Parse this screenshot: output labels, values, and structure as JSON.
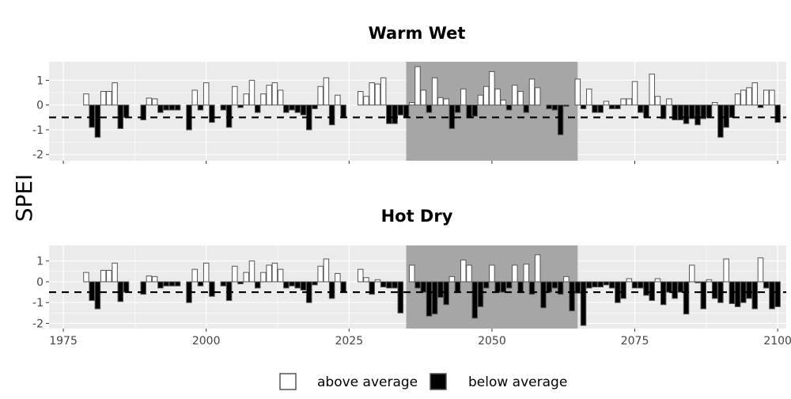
{
  "chart_data": [
    {
      "type": "bar",
      "title": "Warm Wet",
      "ylabel": "SPEI",
      "xlabel": "",
      "xlim": [
        1972.5,
        2101.5
      ],
      "ylim": [
        -2.25,
        1.75
      ],
      "yticks": [
        -2,
        -1,
        0,
        1
      ],
      "ytick_labels": [
        "-2",
        "-1",
        "0",
        "1"
      ],
      "xticks": [
        1975,
        2000,
        2025,
        2050,
        2075,
        2100
      ],
      "xtick_labels": [],
      "threshold": -0.5,
      "highlight": [
        2035,
        2065
      ],
      "grid": true,
      "series": [
        {
          "start_year": 1979,
          "values": [
            0.45,
            -0.9,
            -1.3,
            0.55,
            0.55,
            0.9,
            -0.95,
            -0.5,
            0,
            0,
            -0.6,
            0.28,
            0.25,
            -0.3,
            -0.2,
            -0.2,
            -0.2,
            0,
            -1,
            0.6,
            -0.2,
            0.9,
            -0.7,
            0,
            -0.2,
            -0.9,
            0.75,
            -0.1,
            0.45,
            1,
            -0.3,
            0.45,
            0.8,
            0.9,
            0.6,
            -0.3,
            -0.2,
            -0.3,
            -0.4,
            -1,
            -0.15,
            0.75,
            1.1,
            -0.8,
            0.4,
            -0.5,
            0,
            0,
            0.55,
            0.35,
            0.9,
            0.85,
            1.1,
            -0.75,
            -0.75,
            -0.4,
            -0.5,
            0.1,
            1.55,
            0.6,
            -0.3,
            1.1,
            0.3,
            0.25,
            -0.95,
            -0.3,
            0.65,
            -0.5,
            -0.45,
            0.4,
            0.75,
            1.35,
            0.65,
            0.2,
            -0.2,
            0.8,
            0.55,
            -0.3,
            1.05,
            0.7,
            0,
            -0.15,
            -0.2,
            -1.2,
            -0.05,
            0,
            1.05,
            -0.15,
            0.65,
            -0.3,
            -0.3,
            0.15,
            -0.15,
            -0.15,
            0.25,
            0.25,
            0.95,
            -0.3,
            -0.5,
            1.25,
            0.35,
            -0.55,
            0.25,
            -0.6,
            -0.6,
            -0.75,
            -0.55,
            -0.8,
            -0.55,
            -0.5,
            0.1,
            -1.3,
            -0.9,
            -0.5,
            0.45,
            0.6,
            0.7,
            0.9,
            -0.1,
            0.6,
            0.6,
            -0.7
          ]
        }
      ]
    },
    {
      "type": "bar",
      "title": "Hot Dry",
      "ylabel": "SPEI",
      "xlabel": "",
      "xlim": [
        1972.5,
        2101.5
      ],
      "ylim": [
        -2.25,
        1.75
      ],
      "yticks": [
        -2,
        -1,
        0,
        1
      ],
      "ytick_labels": [
        "-2",
        "-1",
        "0",
        "1"
      ],
      "xticks": [
        1975,
        2000,
        2025,
        2050,
        2075,
        2100
      ],
      "xtick_labels": [
        "1975",
        "2000",
        "2025",
        "2050",
        "2075",
        "2100"
      ],
      "threshold": -0.5,
      "highlight": [
        2035,
        2065
      ],
      "grid": true,
      "series": [
        {
          "start_year": 1979,
          "values": [
            0.45,
            -0.9,
            -1.3,
            0.55,
            0.55,
            0.9,
            -0.95,
            -0.5,
            0,
            0,
            -0.6,
            0.28,
            0.25,
            -0.3,
            -0.2,
            -0.2,
            -0.2,
            0,
            -1,
            0.6,
            -0.2,
            0.9,
            -0.7,
            0,
            -0.2,
            -0.9,
            0.75,
            -0.1,
            0.45,
            1,
            -0.3,
            0.45,
            0.8,
            0.9,
            0.6,
            -0.3,
            -0.2,
            -0.3,
            -0.4,
            -1,
            -0.15,
            0.75,
            1.1,
            -0.8,
            0.4,
            -0.5,
            0,
            0,
            0.6,
            0.2,
            -0.6,
            0.1,
            -0.25,
            -0.3,
            -0.3,
            -1.5,
            0,
            0.8,
            -0.3,
            -0.5,
            -1.65,
            -1.55,
            -0.75,
            -1.1,
            0.25,
            -0.5,
            1.05,
            0.8,
            -1.75,
            -1.2,
            -0.3,
            0.8,
            -0.5,
            -0.5,
            -0.3,
            0.8,
            -0.5,
            0.85,
            -0.6,
            1.3,
            -1.25,
            -0.5,
            -0.3,
            -0.6,
            0.25,
            -1.4,
            -0.55,
            -2.1,
            -0.3,
            -0.25,
            -0.25,
            -0.15,
            -0.3,
            -1,
            -0.8,
            0.15,
            -0.3,
            -0.3,
            -0.65,
            -0.9,
            0.15,
            -1.1,
            -0.5,
            -0.8,
            -0.5,
            -1.55,
            0.8,
            -0.05,
            -1.3,
            0.1,
            -0.8,
            -1.0,
            1.1,
            -1.05,
            -1.2,
            -1.0,
            -0.8,
            -1.3,
            1.15,
            -0.3,
            -1.3,
            -1.2
          ]
        }
      ]
    }
  ],
  "legend": {
    "above_label": "above average",
    "below_label": "below average",
    "above_color": "#ffffff",
    "below_color": "#000000"
  },
  "colors": {
    "panel_bg": "#ebebeb",
    "grid": "#ffffff",
    "highlight": "#a6a6a6",
    "bar_stroke": "#555555"
  }
}
